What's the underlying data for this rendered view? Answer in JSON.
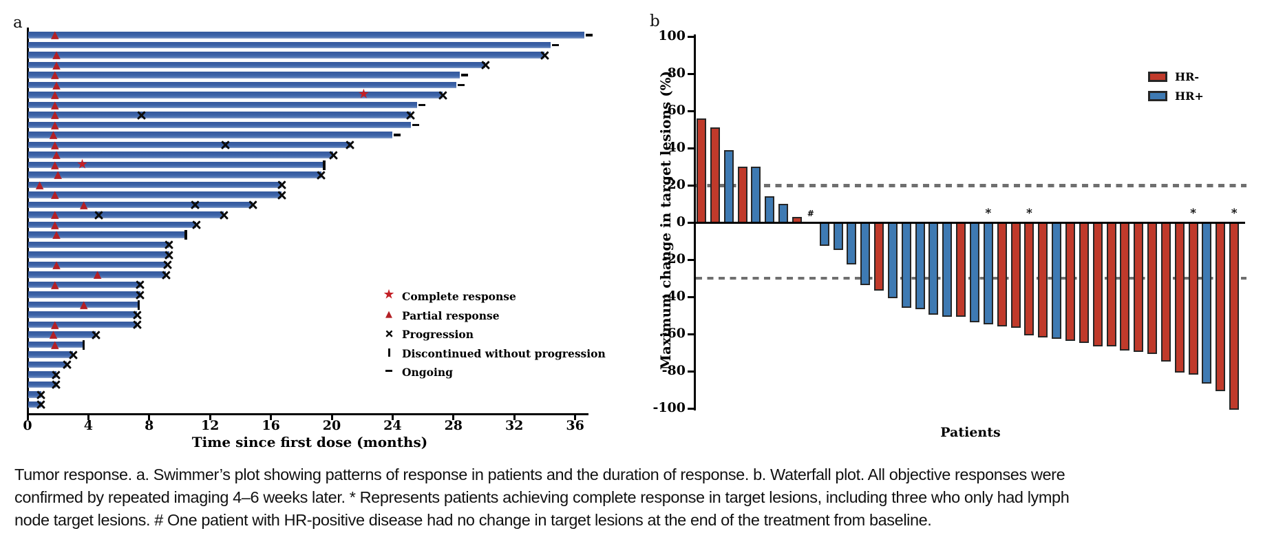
{
  "caption": {
    "lines": [
      "Tumor response. a. Swimmer’s plot showing patterns of response in patients and the duration of response. b. Waterfall plot. All objective responses were",
      "confirmed by repeated imaging 4–6 weeks later. * Represents patients achieving complete response in target lesions, including three who only had lymph",
      "node target lesions. # One patient with HR-positive disease had no change in target lesions at the end of the treatment from baseline."
    ]
  },
  "colors": {
    "swimmer_bar": "#3c63a8",
    "hr_negative": "#c03a2b",
    "hr_positive": "#3e7ab3",
    "marker_red": "#b32025",
    "star_red": "#c32026",
    "bar_outline": "#262626",
    "dashed_reference": "#6f6f6f",
    "axis": "#000000"
  },
  "chart_data": [
    {
      "type": "swimmer",
      "panel_label": "a",
      "xlabel": "Time since first dose (months)",
      "xlim": [
        0,
        37
      ],
      "xticks": [
        0,
        4,
        8,
        12,
        16,
        20,
        24,
        28,
        32,
        36
      ],
      "legend": [
        {
          "symbol": "star",
          "label": "Complete response"
        },
        {
          "symbol": "triangle",
          "label": "Partial response"
        },
        {
          "symbol": "x",
          "label": "Progression"
        },
        {
          "symbol": "bar",
          "label": "Discontinued without progression"
        },
        {
          "symbol": "dash",
          "label": "Ongoing"
        }
      ],
      "marker_meaning": {
        "triangle": "partial response time",
        "star": "complete response time",
        "x": "progression",
        "bar": "discontinued without progression",
        "dash": "ongoing"
      },
      "patients": [
        {
          "end": 36.6,
          "type": "ongoing",
          "pr": 1.8
        },
        {
          "end": 34.4,
          "type": "ongoing"
        },
        {
          "end": 34.0,
          "type": "progression",
          "pr": 1.9
        },
        {
          "end": 30.1,
          "type": "progression",
          "pr": 1.9
        },
        {
          "end": 28.4,
          "type": "ongoing",
          "pr": 1.8
        },
        {
          "end": 28.2,
          "type": "ongoing",
          "pr": 1.9
        },
        {
          "end": 27.3,
          "type": "progression",
          "pr": 1.8,
          "cr": 22.1
        },
        {
          "end": 25.6,
          "type": "ongoing",
          "pr": 1.8
        },
        {
          "end": 25.2,
          "type": "progression",
          "pr": 1.8,
          "mid": 7.5
        },
        {
          "end": 25.2,
          "type": "ongoing",
          "pr": 1.8
        },
        {
          "end": 24.0,
          "type": "ongoing",
          "pr": 1.7
        },
        {
          "end": 21.2,
          "type": "progression",
          "pr": 1.8,
          "mid": 13.0
        },
        {
          "end": 20.1,
          "type": "progression",
          "pr": 1.9
        },
        {
          "end": 19.5,
          "type": "discontinued",
          "pr": 1.8,
          "cr": 3.6
        },
        {
          "end": 19.3,
          "type": "progression",
          "pr": 2.0
        },
        {
          "end": 16.7,
          "type": "progression",
          "pr": 0.8
        },
        {
          "end": 16.7,
          "type": "progression",
          "pr": 1.8
        },
        {
          "end": 14.8,
          "type": "progression",
          "pr": 3.7,
          "mid": 11.0
        },
        {
          "end": 12.9,
          "type": "progression",
          "pr": 1.8,
          "mid": 4.7
        },
        {
          "end": 11.1,
          "type": "progression",
          "pr": 1.8
        },
        {
          "end": 10.4,
          "type": "discontinued",
          "pr": 1.9
        },
        {
          "end": 9.3,
          "type": "progression"
        },
        {
          "end": 9.3,
          "type": "progression"
        },
        {
          "end": 9.2,
          "type": "progression",
          "pr": 1.9
        },
        {
          "end": 9.1,
          "type": "progression",
          "pr": 4.6
        },
        {
          "end": 7.4,
          "type": "progression",
          "pr": 1.8
        },
        {
          "end": 7.4,
          "type": "progression"
        },
        {
          "end": 7.3,
          "type": "discontinued",
          "pr": 3.7
        },
        {
          "end": 7.2,
          "type": "progression"
        },
        {
          "end": 7.2,
          "type": "progression",
          "pr": 1.8
        },
        {
          "end": 4.5,
          "type": "progression",
          "pr": 1.7
        },
        {
          "end": 3.7,
          "type": "discontinued",
          "pr": 1.8
        },
        {
          "end": 3.0,
          "type": "progression"
        },
        {
          "end": 2.6,
          "type": "progression"
        },
        {
          "end": 1.9,
          "type": "progression"
        },
        {
          "end": 1.9,
          "type": "progression"
        },
        {
          "end": 0.9,
          "type": "progression"
        },
        {
          "end": 0.9,
          "type": "progression"
        }
      ]
    },
    {
      "type": "waterfall",
      "panel_label": "b",
      "ylabel": "Maximum change in target lesions (%)",
      "xlabel": "Patients",
      "ylim": [
        -100,
        100
      ],
      "yticks": [
        100,
        80,
        60,
        40,
        20,
        0,
        -20,
        -40,
        -60,
        -80,
        -100
      ],
      "reference_lines": [
        20,
        -30
      ],
      "legend": [
        {
          "name": "HR-",
          "color": "#c03a2b"
        },
        {
          "name": "HR+",
          "color": "#3e7ab3"
        }
      ],
      "annotations": {
        "star": "complete response in target lesions",
        "hash": "no change in target lesions from baseline"
      },
      "bars": [
        {
          "value": 56,
          "group": "HR-"
        },
        {
          "value": 51,
          "group": "HR-"
        },
        {
          "value": 39,
          "group": "HR+"
        },
        {
          "value": 30,
          "group": "HR-"
        },
        {
          "value": 30,
          "group": "HR+"
        },
        {
          "value": 14,
          "group": "HR+"
        },
        {
          "value": 10,
          "group": "HR+"
        },
        {
          "value": 3,
          "group": "HR-"
        },
        {
          "value": 0,
          "group": "HR+",
          "mark": "hash"
        },
        {
          "value": -12,
          "group": "HR+"
        },
        {
          "value": -14,
          "group": "HR+"
        },
        {
          "value": -22,
          "group": "HR+"
        },
        {
          "value": -33,
          "group": "HR+"
        },
        {
          "value": -36,
          "group": "HR-"
        },
        {
          "value": -40,
          "group": "HR+"
        },
        {
          "value": -45,
          "group": "HR+"
        },
        {
          "value": -46,
          "group": "HR+"
        },
        {
          "value": -49,
          "group": "HR+"
        },
        {
          "value": -50,
          "group": "HR+"
        },
        {
          "value": -50,
          "group": "HR-"
        },
        {
          "value": -53,
          "group": "HR+"
        },
        {
          "value": -54,
          "group": "HR+",
          "mark": "star"
        },
        {
          "value": -55,
          "group": "HR-"
        },
        {
          "value": -56,
          "group": "HR-"
        },
        {
          "value": -60,
          "group": "HR-",
          "mark": "star"
        },
        {
          "value": -61,
          "group": "HR-"
        },
        {
          "value": -62,
          "group": "HR+"
        },
        {
          "value": -63,
          "group": "HR-"
        },
        {
          "value": -64,
          "group": "HR-"
        },
        {
          "value": -66,
          "group": "HR-"
        },
        {
          "value": -66,
          "group": "HR-"
        },
        {
          "value": -68,
          "group": "HR-"
        },
        {
          "value": -69,
          "group": "HR-"
        },
        {
          "value": -70,
          "group": "HR-"
        },
        {
          "value": -74,
          "group": "HR-"
        },
        {
          "value": -80,
          "group": "HR-"
        },
        {
          "value": -81,
          "group": "HR-",
          "mark": "star"
        },
        {
          "value": -86,
          "group": "HR+"
        },
        {
          "value": -90,
          "group": "HR-"
        },
        {
          "value": -100,
          "group": "HR-",
          "mark": "star"
        }
      ]
    }
  ]
}
